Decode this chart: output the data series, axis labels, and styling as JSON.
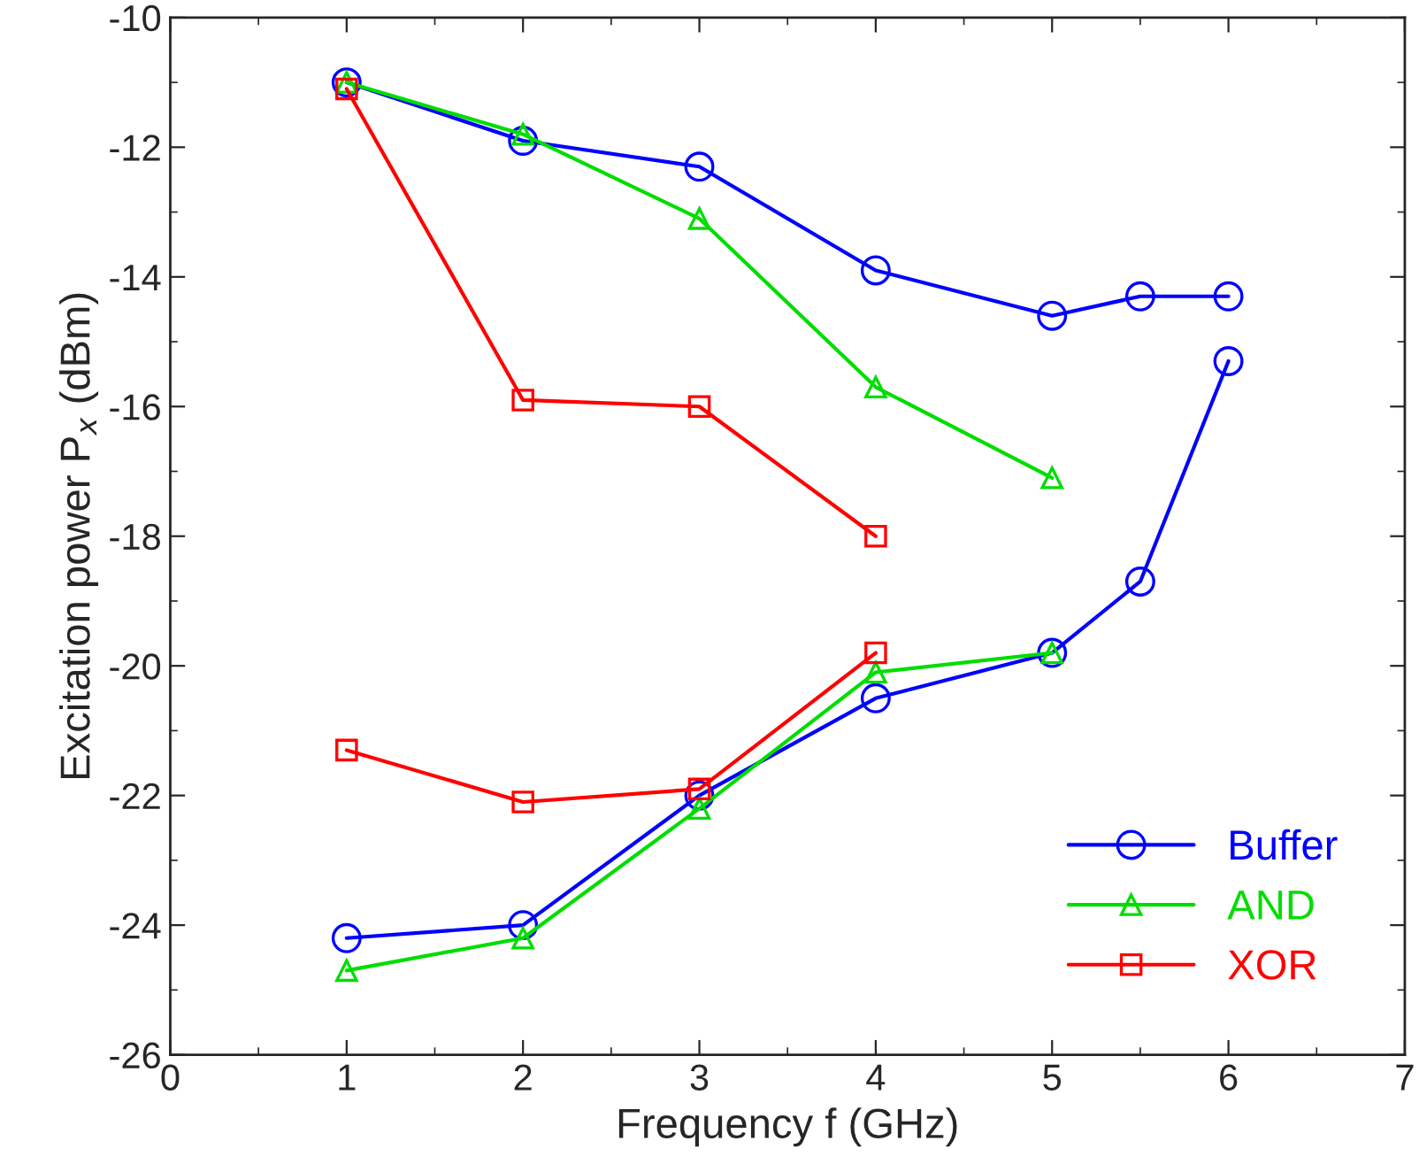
{
  "chart_data": {
    "type": "line",
    "xlabel": "Frequency f (GHz)",
    "ylabel": "Excitation power P$_{x}$ (dBm)",
    "xlim": [
      0,
      7
    ],
    "xticks": [
      0,
      1,
      2,
      3,
      4,
      5,
      6,
      7
    ],
    "ylim": [
      -26,
      -10
    ],
    "yticks": [
      -26,
      -24,
      -22,
      -20,
      -18,
      -16,
      -14,
      -12,
      -10
    ],
    "grid": false,
    "legend": "bottom right",
    "series": [
      {
        "name": "Buffer",
        "color": "#0000ff",
        "marker": "circle",
        "x": [
          1,
          2,
          3,
          4,
          5,
          5.5,
          6
        ],
        "values": [
          -11.0,
          -11.9,
          -12.3,
          -13.9,
          -14.6,
          -14.3,
          -14.3
        ]
      },
      {
        "name": "AND",
        "color": "#00dd00",
        "marker": "triangle",
        "x": [
          1,
          2,
          3,
          4,
          5
        ],
        "values": [
          -11.0,
          -11.8,
          -13.1,
          -15.7,
          -17.1
        ]
      },
      {
        "name": "XOR",
        "color": "#ff0000",
        "marker": "square",
        "x": [
          1,
          2,
          3,
          4
        ],
        "values": [
          -11.1,
          -15.9,
          -16.0,
          -18.0
        ]
      },
      {
        "color": "#0000ff",
        "marker": "circle",
        "x": [
          1,
          2,
          3,
          4,
          5,
          5.5,
          6
        ],
        "values": [
          -24.2,
          -24.0,
          -22.0,
          -20.5,
          -19.8,
          -18.7,
          -15.3
        ]
      },
      {
        "color": "#00dd00",
        "marker": "triangle",
        "x": [
          1,
          2,
          3,
          4,
          5
        ],
        "values": [
          -24.7,
          -24.2,
          -22.2,
          -20.1,
          -19.8
        ]
      },
      {
        "color": "#ff0000",
        "marker": "square",
        "x": [
          1,
          2,
          3,
          4
        ],
        "values": [
          -21.3,
          -22.1,
          -21.9,
          -19.8
        ]
      }
    ]
  }
}
